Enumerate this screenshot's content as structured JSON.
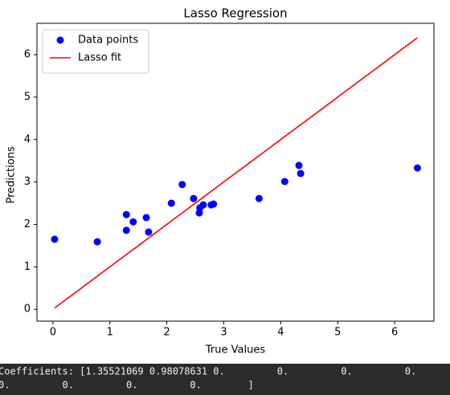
{
  "chart_data": {
    "type": "scatter",
    "title": "Lasso Regression",
    "x_label": "True Values",
    "y_label": "Predictions",
    "xlim": [
      -0.28,
      6.69
    ],
    "ylim": [
      -0.28,
      6.74
    ],
    "xticks": [
      0,
      1,
      2,
      3,
      4,
      5,
      6
    ],
    "yticks": [
      0,
      1,
      2,
      3,
      4,
      5,
      6
    ],
    "grid": false,
    "legend": "upper-left",
    "series": [
      {
        "name": "Data points",
        "type": "scatter",
        "color": "#0000ff",
        "x": [
          0.03,
          0.78,
          1.29,
          1.29,
          1.41,
          1.64,
          1.68,
          2.08,
          2.27,
          2.47,
          2.57,
          2.58,
          2.64,
          2.78,
          2.82,
          3.62,
          4.07,
          4.32,
          4.35,
          6.4
        ],
        "values": [
          1.65,
          1.59,
          2.23,
          1.86,
          2.06,
          2.16,
          1.82,
          2.5,
          2.94,
          2.61,
          2.27,
          2.39,
          2.46,
          2.46,
          2.48,
          2.61,
          3.01,
          3.39,
          3.2,
          3.33
        ]
      },
      {
        "name": "Lasso fit",
        "type": "line",
        "color": "#ff0000",
        "x": [
          0.03,
          6.4
        ],
        "values": [
          0.03,
          6.4
        ]
      }
    ]
  },
  "console": {
    "lines": [
      "Coefficients: [1.35521069 0.98078631 0.         0.         0.         0.",
      "0.         0.         0.         0.        ]"
    ]
  }
}
